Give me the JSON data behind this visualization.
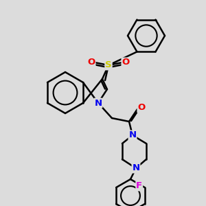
{
  "bg_color": "#dcdcdc",
  "line_color": "#000000",
  "bond_width": 1.8,
  "atom_colors": {
    "N": "#0000ee",
    "O": "#ee0000",
    "S": "#cccc00",
    "F": "#dd00dd",
    "C": "#000000"
  },
  "figsize": [
    3.0,
    3.0
  ],
  "dpi": 100
}
